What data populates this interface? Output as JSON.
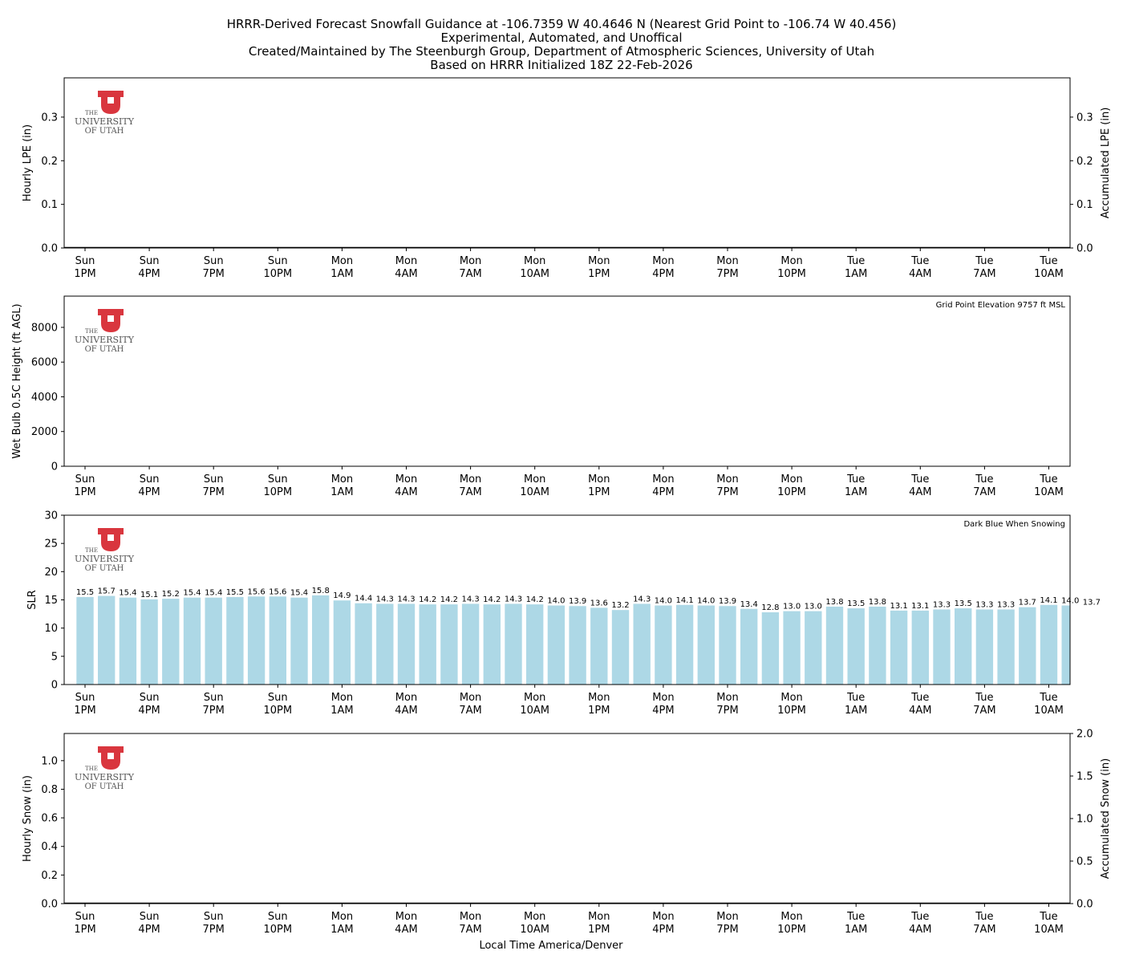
{
  "title": {
    "line1": "HRRR-Derived Forecast Snowfall Guidance at -106.7359 W 40.4646 N (Nearest Grid Point to -106.74 W 40.456)",
    "line2": "Experimental, Automated, and Unoffical",
    "line3": "Created/Maintained by The Steenburgh Group, Department of Atmospheric Sciences, University of Utah",
    "line4": "Based on HRRR Initialized 18Z 22-Feb-2026"
  },
  "logo": {
    "top": "THE",
    "middle": "UNIVERSITY",
    "bottom": "OF UTAH"
  },
  "colors": {
    "logo_red": "#d9363e",
    "bar_light": "#add8e6",
    "bar_dark": "#00008b"
  },
  "xaxis": {
    "label": "Local Time America/Denver",
    "ticks": [
      {
        "hour": 0,
        "day": "Sun",
        "time": "1PM"
      },
      {
        "hour": 3,
        "day": "Sun",
        "time": "4PM"
      },
      {
        "hour": 6,
        "day": "Sun",
        "time": "7PM"
      },
      {
        "hour": 9,
        "day": "Sun",
        "time": "10PM"
      },
      {
        "hour": 12,
        "day": "Mon",
        "time": "1AM"
      },
      {
        "hour": 15,
        "day": "Mon",
        "time": "4AM"
      },
      {
        "hour": 18,
        "day": "Mon",
        "time": "7AM"
      },
      {
        "hour": 21,
        "day": "Mon",
        "time": "10AM"
      },
      {
        "hour": 24,
        "day": "Mon",
        "time": "1PM"
      },
      {
        "hour": 27,
        "day": "Mon",
        "time": "4PM"
      },
      {
        "hour": 30,
        "day": "Mon",
        "time": "7PM"
      },
      {
        "hour": 33,
        "day": "Mon",
        "time": "10PM"
      },
      {
        "hour": 36,
        "day": "Tue",
        "time": "1AM"
      },
      {
        "hour": 39,
        "day": "Tue",
        "time": "4AM"
      },
      {
        "hour": 42,
        "day": "Tue",
        "time": "7AM"
      },
      {
        "hour": 45,
        "day": "Tue",
        "time": "10AM"
      }
    ]
  },
  "chart_data": [
    {
      "type": "bar",
      "ylabel": "Hourly LPE (in)",
      "y2label": "Accumulated LPE (in)",
      "ylim": [
        0,
        0.39
      ],
      "y2lim": [
        0,
        0.39
      ],
      "yticks": [
        "0.0",
        "0.1",
        "0.2",
        "0.3"
      ],
      "y2ticks": [
        "0.0",
        "0.1",
        "0.2",
        "0.3"
      ],
      "values": []
    },
    {
      "type": "bar",
      "ylabel": "Wet Bulb 0.5C Height (ft AGL)",
      "ylim": [
        0,
        9800
      ],
      "yticks": [
        "0",
        "2000",
        "4000",
        "6000",
        "8000"
      ],
      "annotation": "Grid Point Elevation 9757 ft MSL",
      "values": []
    },
    {
      "type": "bar",
      "ylabel": "SLR",
      "ylim": [
        0,
        30
      ],
      "yticks": [
        "0",
        "5",
        "10",
        "15",
        "20",
        "25",
        "30"
      ],
      "annotation": "Dark Blue When Snowing",
      "x_start_hour": 0,
      "values": [
        15.5,
        15.7,
        15.4,
        15.1,
        15.2,
        15.4,
        15.4,
        15.5,
        15.6,
        15.6,
        15.4,
        15.8,
        14.9,
        14.4,
        14.3,
        14.3,
        14.2,
        14.2,
        14.3,
        14.2,
        14.3,
        14.2,
        14.0,
        13.9,
        13.6,
        13.2,
        14.3,
        14.0,
        14.1,
        14.0,
        13.9,
        13.4,
        12.8,
        13.0,
        13.0,
        13.8,
        13.5,
        13.8,
        13.1,
        13.1,
        13.3,
        13.5,
        13.3,
        13.3,
        13.7,
        14.1,
        14.0,
        13.7
      ],
      "labels": [
        "15.5",
        "15.7",
        "15.4",
        "15.1",
        "15.2",
        "15.4",
        "15.4",
        "15.5",
        "15.6",
        "15.6",
        "15.4",
        "15.8",
        "14.9",
        "14.4",
        "14.3",
        "14.3",
        "14.2",
        "14.2",
        "14.3",
        "14.2",
        "14.3",
        "14.2",
        "14.0",
        "13.9",
        "13.6",
        "13.2",
        "14.3",
        "14.0",
        "14.1",
        "14.0",
        "13.9",
        "13.4",
        "12.8",
        "13.0",
        "13.0",
        "13.8",
        "13.5",
        "13.8",
        "13.1",
        "13.1",
        "13.3",
        "13.5",
        "13.3",
        "13.3",
        "13.7",
        "14.1",
        "14.0",
        "13.7"
      ]
    },
    {
      "type": "bar",
      "ylabel": "Hourly Snow (in)",
      "y2label": "Accumulated Snow (in)",
      "ylim": [
        0,
        1.19
      ],
      "y2lim": [
        0,
        2.0
      ],
      "yticks": [
        "0.0",
        "0.2",
        "0.4",
        "0.6",
        "0.8",
        "1.0"
      ],
      "y2ticks": [
        "0.0",
        "0.5",
        "1.0",
        "1.5",
        "2.0"
      ],
      "values": []
    }
  ]
}
